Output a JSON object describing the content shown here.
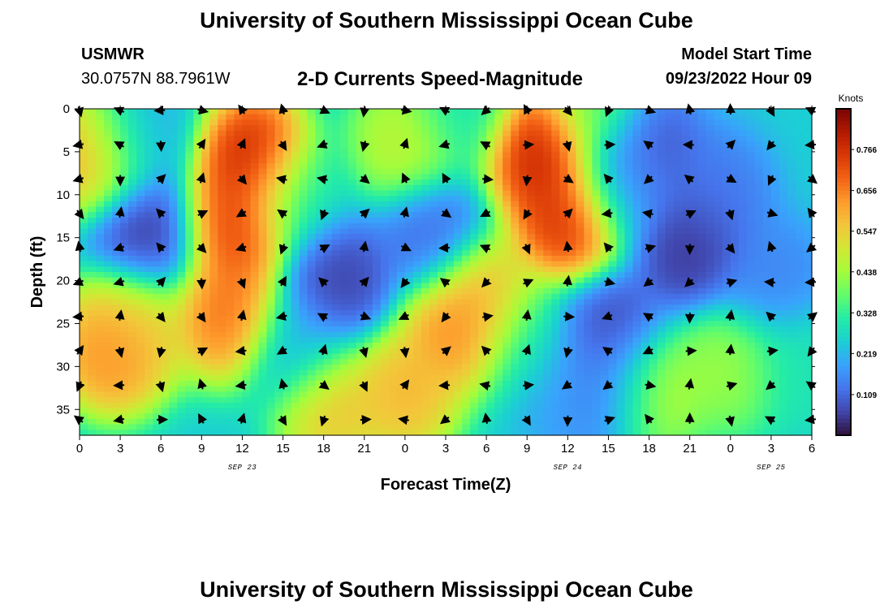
{
  "header": {
    "title": "University of Southern Mississippi Ocean Cube",
    "station": "USMWR",
    "coords": "30.0757N  88.7961W",
    "subtitle": "2-D Currents Speed-Magnitude",
    "model_label": "Model Start Time",
    "model_time": "09/23/2022 Hour 09"
  },
  "footer": {
    "title": "University of Southern Mississippi Ocean Cube"
  },
  "chart_data": {
    "type": "heatmap",
    "title": "2-D Currents Speed-Magnitude",
    "xlabel": "Forecast Time(Z)",
    "ylabel": "Depth (ft)",
    "x_tick_labels": [
      "0",
      "3",
      "6",
      "9",
      "12",
      "15",
      "18",
      "21",
      "0",
      "3",
      "6",
      "9",
      "12",
      "15",
      "18",
      "21",
      "0",
      "3",
      "6"
    ],
    "x_range_hours": [
      0,
      54
    ],
    "date_labels": [
      {
        "text": "SEP 23",
        "hour": 12
      },
      {
        "text": "SEP 24",
        "hour": 36
      },
      {
        "text": "SEP 25",
        "hour": 51
      }
    ],
    "y_ticks": [
      0,
      5,
      10,
      15,
      20,
      25,
      30,
      35
    ],
    "y_range": [
      0,
      38
    ],
    "colorbar": {
      "label": "Knots",
      "ticks": [
        "0.109",
        "0.219",
        "0.328",
        "0.438",
        "0.547",
        "0.656",
        "0.766"
      ],
      "range": [
        0.0,
        0.875
      ],
      "colors": [
        "#30123b",
        "#4145ab",
        "#4675ed",
        "#39a2fc",
        "#1bcfd4",
        "#24eca6",
        "#61fc6c",
        "#a4fc3b",
        "#d1e834",
        "#f3c63a",
        "#fe9b2d",
        "#f36315",
        "#d93806",
        "#b11901",
        "#7a0402"
      ]
    },
    "speed_blobs": [
      {
        "hour": 1,
        "depth": 5,
        "speed": 0.65
      },
      {
        "hour": 5,
        "depth": 15,
        "speed": 0.03
      },
      {
        "hour": 4,
        "depth": 3,
        "speed": 0.2
      },
      {
        "hour": 13,
        "depth": 6,
        "speed": 0.86
      },
      {
        "hour": 11.5,
        "depth": 14,
        "speed": 0.78
      },
      {
        "hour": 11,
        "depth": 24,
        "speed": 0.72
      },
      {
        "hour": 2.5,
        "depth": 28,
        "speed": 0.7
      },
      {
        "hour": 4,
        "depth": 25,
        "speed": 0.55
      },
      {
        "hour": 19,
        "depth": 20,
        "speed": 0.04
      },
      {
        "hour": 16,
        "depth": 10,
        "speed": 0.3
      },
      {
        "hour": 16,
        "depth": 28,
        "speed": 0.2
      },
      {
        "hour": 18.5,
        "depth": 34.5,
        "speed": 0.6
      },
      {
        "hour": 24,
        "depth": 4,
        "speed": 0.5
      },
      {
        "hour": 24,
        "depth": 33,
        "speed": 0.62
      },
      {
        "hour": 28,
        "depth": 0,
        "speed": 0.3
      },
      {
        "hour": 26,
        "depth": 15,
        "speed": 0.1
      },
      {
        "hour": 28,
        "depth": 25,
        "speed": 0.7
      },
      {
        "hour": 30,
        "depth": 22,
        "speed": 0.6
      },
      {
        "hour": 34,
        "depth": 5,
        "speed": 0.85
      },
      {
        "hour": 36,
        "depth": 13,
        "speed": 0.82
      },
      {
        "hour": 33,
        "depth": 27,
        "speed": 0.3
      },
      {
        "hour": 36,
        "depth": 33,
        "speed": 0.18
      },
      {
        "hour": 39,
        "depth": 33,
        "speed": 0.1
      },
      {
        "hour": 40,
        "depth": 9,
        "speed": 0.2
      },
      {
        "hour": 38,
        "depth": 0,
        "speed": 0.4
      },
      {
        "hour": 39,
        "depth": 26,
        "speed": 0.05
      },
      {
        "hour": 42,
        "depth": 33,
        "speed": 0.5
      },
      {
        "hour": 42,
        "depth": 5,
        "speed": 0.06
      },
      {
        "hour": 45,
        "depth": 16,
        "speed": 0.02
      },
      {
        "hour": 48,
        "depth": 30,
        "speed": 0.45
      },
      {
        "hour": 47,
        "depth": 10,
        "speed": 0.12
      },
      {
        "hour": 51,
        "depth": 20,
        "speed": 0.14
      },
      {
        "hour": 53,
        "depth": 30,
        "speed": 0.3
      }
    ],
    "background_speed": 0.25,
    "vector_grid": {
      "hour_step": 3,
      "depth_start": 0,
      "depth_step": 4,
      "note": "direction arrows at each grid node"
    }
  }
}
